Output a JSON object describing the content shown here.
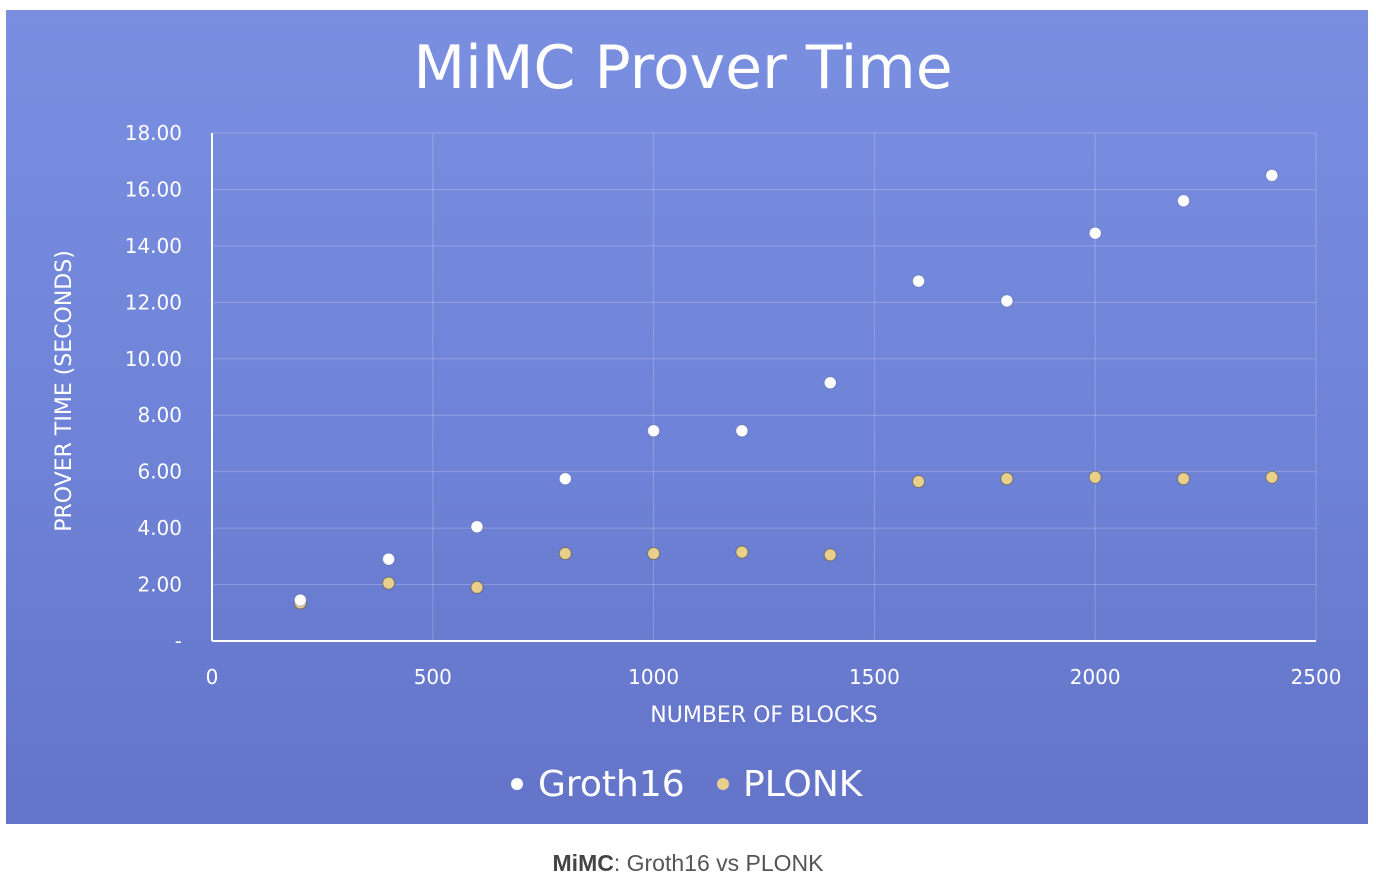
{
  "chart_data": {
    "type": "scatter",
    "title": "MiMC Prover Time",
    "xlabel": "NUMBER OF BLOCKS",
    "ylabel": "PROVER TIME (SECONDS)",
    "xlim": [
      0,
      2500
    ],
    "ylim": [
      0,
      18
    ],
    "x_ticks": [
      0,
      500,
      1000,
      1500,
      2000,
      2500
    ],
    "x_tick_labels": [
      "0",
      "500",
      "1000",
      "1500",
      "2000",
      "2500"
    ],
    "y_ticks": [
      0,
      2,
      4,
      6,
      8,
      10,
      12,
      14,
      16,
      18
    ],
    "y_tick_labels": [
      "-",
      "2.00",
      "4.00",
      "6.00",
      "8.00",
      "10.00",
      "12.00",
      "14.00",
      "16.00",
      "18.00"
    ],
    "grid": true,
    "legend_position": "bottom",
    "series": [
      {
        "name": "Groth16",
        "color": "#ffffff",
        "x": [
          200,
          400,
          600,
          800,
          1000,
          1200,
          1400,
          1600,
          1800,
          2000,
          2200,
          2400
        ],
        "y": [
          1.45,
          2.9,
          4.05,
          5.75,
          7.45,
          7.45,
          9.15,
          12.75,
          12.05,
          14.45,
          15.6,
          16.5
        ]
      },
      {
        "name": "PLONK",
        "color": "#e8cf8c",
        "x": [
          200,
          400,
          600,
          800,
          1000,
          1200,
          1400,
          1600,
          1800,
          2000,
          2200,
          2400
        ],
        "y": [
          1.35,
          2.05,
          1.9,
          3.1,
          3.1,
          3.15,
          3.05,
          5.65,
          5.75,
          5.8,
          5.75,
          5.8
        ]
      }
    ]
  },
  "caption": {
    "bold": "MiMC",
    "rest": ": Groth16 vs PLONK"
  }
}
